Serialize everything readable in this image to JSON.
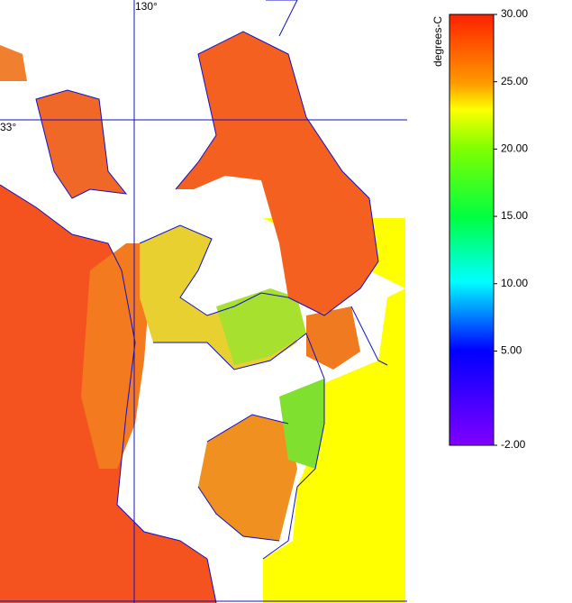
{
  "map": {
    "lon_label": "130°",
    "lat_label": "33°"
  },
  "colorbar": {
    "title": "degrees-C",
    "range": [
      -2,
      30
    ],
    "ticks": [
      {
        "value": 30,
        "label": "30.00"
      },
      {
        "value": 25,
        "label": "25.00"
      },
      {
        "value": 20,
        "label": "20.00"
      },
      {
        "value": 15,
        "label": "15.00"
      },
      {
        "value": 10,
        "label": "10.00"
      },
      {
        "value": 5,
        "label": "5.00"
      },
      {
        "value": -2,
        "label": "-2.00"
      }
    ]
  }
}
